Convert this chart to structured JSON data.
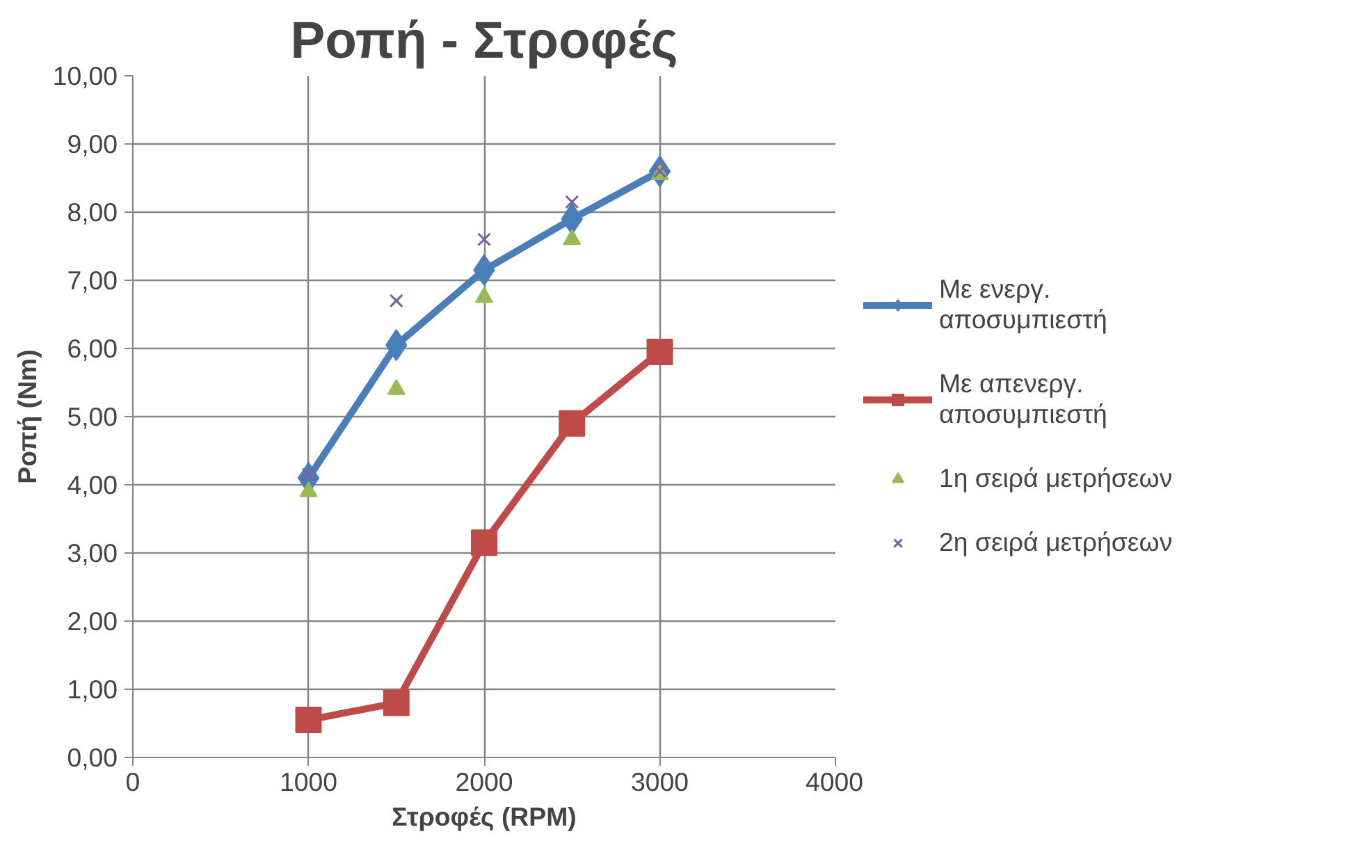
{
  "chart_data": {
    "type": "line",
    "title": "Ροπή - Στροφές",
    "xlabel": "Στροφές (RPM)",
    "ylabel": "Ροπή (Nm)",
    "x": [
      1000,
      1500,
      2000,
      2500,
      3000
    ],
    "series": [
      {
        "name": "Με ενεργ. αποσυμπιεστή",
        "color": "#4a7ebb",
        "marker": "diamond",
        "values": [
          4.1,
          6.05,
          7.15,
          7.9,
          8.6
        ]
      },
      {
        "name": "Με απενεργ. αποσυμπιεστή",
        "color": "#be4b48",
        "marker": "square",
        "values": [
          0.55,
          0.8,
          3.15,
          4.9,
          5.95
        ]
      },
      {
        "name": "1η σειρά μετρήσεων",
        "color": "#98b954",
        "type": "scatter",
        "marker": "triangle",
        "values": [
          3.9,
          5.4,
          6.75,
          7.6,
          8.55
        ]
      },
      {
        "name": "2η σειρά μετρήσεων",
        "color": "#7d60a0",
        "type": "scatter",
        "marker": "cross",
        "values": [
          4.15,
          6.7,
          7.6,
          8.15,
          8.6
        ]
      }
    ],
    "xlim": [
      0,
      4000
    ],
    "xticks": [
      0,
      1000,
      2000,
      3000,
      4000
    ],
    "ylim": [
      0,
      10
    ],
    "yticks": [
      {
        "value": 0,
        "label": "0,00"
      },
      {
        "value": 1,
        "label": "1,00"
      },
      {
        "value": 2,
        "label": "2,00"
      },
      {
        "value": 3,
        "label": "3,00"
      },
      {
        "value": 4,
        "label": "4,00"
      },
      {
        "value": 5,
        "label": "5,00"
      },
      {
        "value": 6,
        "label": "6,00"
      },
      {
        "value": 7,
        "label": "7,00"
      },
      {
        "value": 8,
        "label": "8,00"
      },
      {
        "value": 9,
        "label": "9,00"
      },
      {
        "value": 10,
        "label": "10,00"
      }
    ],
    "grid": true,
    "legend": "right"
  }
}
